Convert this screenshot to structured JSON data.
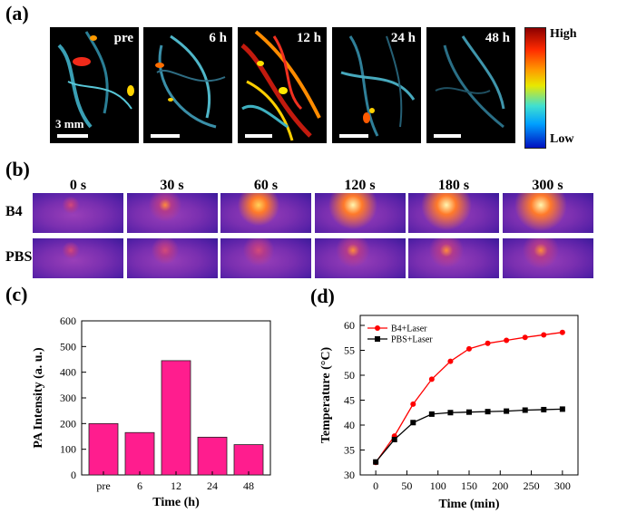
{
  "panel_labels": {
    "a": "(a)",
    "b": "(b)",
    "c": "(c)",
    "d": "(d)"
  },
  "panel_a": {
    "times": [
      "pre",
      "6 h",
      "12 h",
      "24 h",
      "48 h"
    ],
    "scale_text": "3 mm",
    "colorbar": {
      "high": "High",
      "low": "Low"
    }
  },
  "panel_b": {
    "times": [
      "0 s",
      "30 s",
      "60 s",
      "120 s",
      "180 s",
      "300 s"
    ],
    "rows": [
      "B4",
      "PBS"
    ]
  },
  "chart_data": [
    {
      "type": "bar",
      "categories": [
        "pre",
        "6",
        "12",
        "24",
        "48"
      ],
      "values": [
        200,
        165,
        445,
        147,
        118
      ],
      "xlabel": "Time (h)",
      "ylabel": "PA Intensity (a. u.)",
      "ylim": [
        0,
        600
      ],
      "yticks": [
        "0",
        "100",
        "200",
        "300",
        "400",
        "500",
        "600"
      ],
      "bar_color": "#ff1d8e"
    },
    {
      "type": "line",
      "xlabel": "Time (min)",
      "ylabel": "Temperature (°C)",
      "xlim": [
        -25,
        325
      ],
      "ylim": [
        30,
        62
      ],
      "xticks": [
        "0",
        "50",
        "100",
        "150",
        "200",
        "250",
        "300"
      ],
      "yticks": [
        "30",
        "35",
        "40",
        "45",
        "50",
        "55",
        "60"
      ],
      "legend_position": "top-left",
      "x": [
        0,
        30,
        60,
        90,
        120,
        150,
        180,
        210,
        240,
        270,
        300
      ],
      "series": [
        {
          "name": "B4+Laser",
          "color": "#ff0000",
          "marker": "circle",
          "values": [
            32.5,
            37.8,
            44.2,
            49.2,
            52.8,
            55.3,
            56.4,
            57.0,
            57.6,
            58.1,
            58.6
          ]
        },
        {
          "name": "PBS+Laser",
          "color": "#000000",
          "marker": "square",
          "values": [
            32.6,
            37.1,
            40.5,
            42.2,
            42.5,
            42.6,
            42.7,
            42.8,
            43.0,
            43.1,
            43.2
          ]
        }
      ]
    }
  ]
}
